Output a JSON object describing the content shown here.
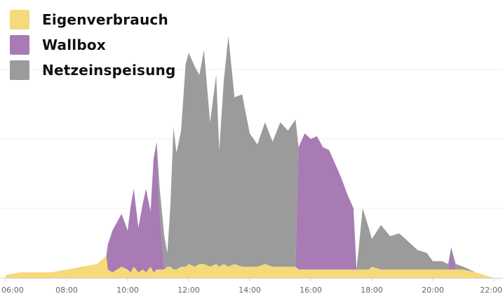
{
  "chart_data": {
    "type": "area",
    "stacked": true,
    "title": "",
    "xlabel": "",
    "ylabel": "",
    "xlim": [
      6,
      22
    ],
    "ylim": [
      0,
      100
    ],
    "grid": true,
    "yticks": [
      0,
      25,
      50,
      75
    ],
    "legend_position": "top-left",
    "x_tick_labels": [
      "06:00",
      "08:00",
      "10:00",
      "12:00",
      "14:00",
      "16:00",
      "18:00",
      "20:00",
      "22:00"
    ],
    "x": [
      6.0,
      6.5,
      7.0,
      7.5,
      8.0,
      8.5,
      9.0,
      9.3,
      9.35,
      9.5,
      9.8,
      10.0,
      10.1,
      10.2,
      10.35,
      10.5,
      10.6,
      10.75,
      10.85,
      10.95,
      11.05,
      11.2,
      11.3,
      11.4,
      11.5,
      11.6,
      11.75,
      11.9,
      12.0,
      12.2,
      12.35,
      12.5,
      12.7,
      12.9,
      13.0,
      13.15,
      13.3,
      13.5,
      13.75,
      14.0,
      14.25,
      14.5,
      14.75,
      15.0,
      15.25,
      15.5,
      15.6,
      15.8,
      16.0,
      16.2,
      16.4,
      16.6,
      16.8,
      17.0,
      17.2,
      17.4,
      17.5,
      17.7,
      17.9,
      18.0,
      18.3,
      18.6,
      18.9,
      19.2,
      19.5,
      19.8,
      20.0,
      20.3,
      20.5,
      20.6,
      20.75,
      21.0,
      21.4,
      22.0
    ],
    "series": [
      {
        "name": "Eigenverbrauch",
        "color": "#f5d97a",
        "values": [
          1,
          2,
          2,
          2,
          3,
          4,
          5,
          8,
          3,
          2,
          4,
          3,
          2,
          4,
          2,
          3,
          2,
          4,
          2,
          3,
          3,
          3,
          4,
          4,
          3,
          3,
          4,
          4,
          5,
          4,
          5,
          5,
          4,
          5,
          4,
          5,
          4,
          5,
          4,
          4,
          4,
          5,
          4,
          4,
          4,
          4,
          3,
          3,
          3,
          3,
          3,
          3,
          3,
          3,
          3,
          3,
          3,
          3,
          3,
          4,
          3,
          3,
          3,
          3,
          3,
          3,
          3,
          3,
          3,
          3,
          3,
          3,
          2,
          0
        ]
      },
      {
        "name": "Wallbox",
        "color": "#a87bb5",
        "values": [
          0,
          0,
          0,
          0,
          0,
          0,
          0,
          0,
          9,
          15,
          19,
          14,
          24,
          28,
          16,
          24,
          30,
          20,
          41,
          46,
          20,
          0,
          0,
          0,
          0,
          0,
          0,
          0,
          0,
          0,
          0,
          0,
          0,
          0,
          0,
          0,
          0,
          0,
          0,
          0,
          0,
          0,
          0,
          0,
          0,
          0,
          44,
          49,
          47,
          48,
          44,
          43,
          38,
          33,
          27,
          22,
          0,
          0,
          0,
          0,
          0,
          0,
          0,
          0,
          0,
          0,
          0,
          0,
          0,
          8,
          0,
          0,
          0,
          0
        ]
      },
      {
        "name": "Netzeinspeisung",
        "color": "#9b9b9b",
        "values": [
          0,
          0,
          0,
          0,
          0,
          0,
          0,
          0,
          0,
          0,
          0,
          0,
          0,
          0,
          0,
          0,
          0,
          0,
          0,
          0,
          9,
          12,
          5,
          22,
          51,
          42,
          49,
          73,
          76,
          72,
          68,
          77,
          52,
          68,
          42,
          66,
          83,
          60,
          62,
          48,
          44,
          51,
          45,
          52,
          49,
          53,
          0,
          0,
          0,
          0,
          0,
          0,
          0,
          0,
          0,
          0,
          0,
          22,
          15,
          10,
          16,
          12,
          13,
          10,
          7,
          6,
          3,
          3,
          2,
          0,
          2,
          1,
          0,
          0
        ]
      }
    ]
  },
  "legend": {
    "items": [
      {
        "label": "Eigenverbrauch",
        "color": "#f5d97a"
      },
      {
        "label": "Wallbox",
        "color": "#a87bb5"
      },
      {
        "label": "Netzeinspeisung",
        "color": "#9b9b9b"
      }
    ]
  }
}
